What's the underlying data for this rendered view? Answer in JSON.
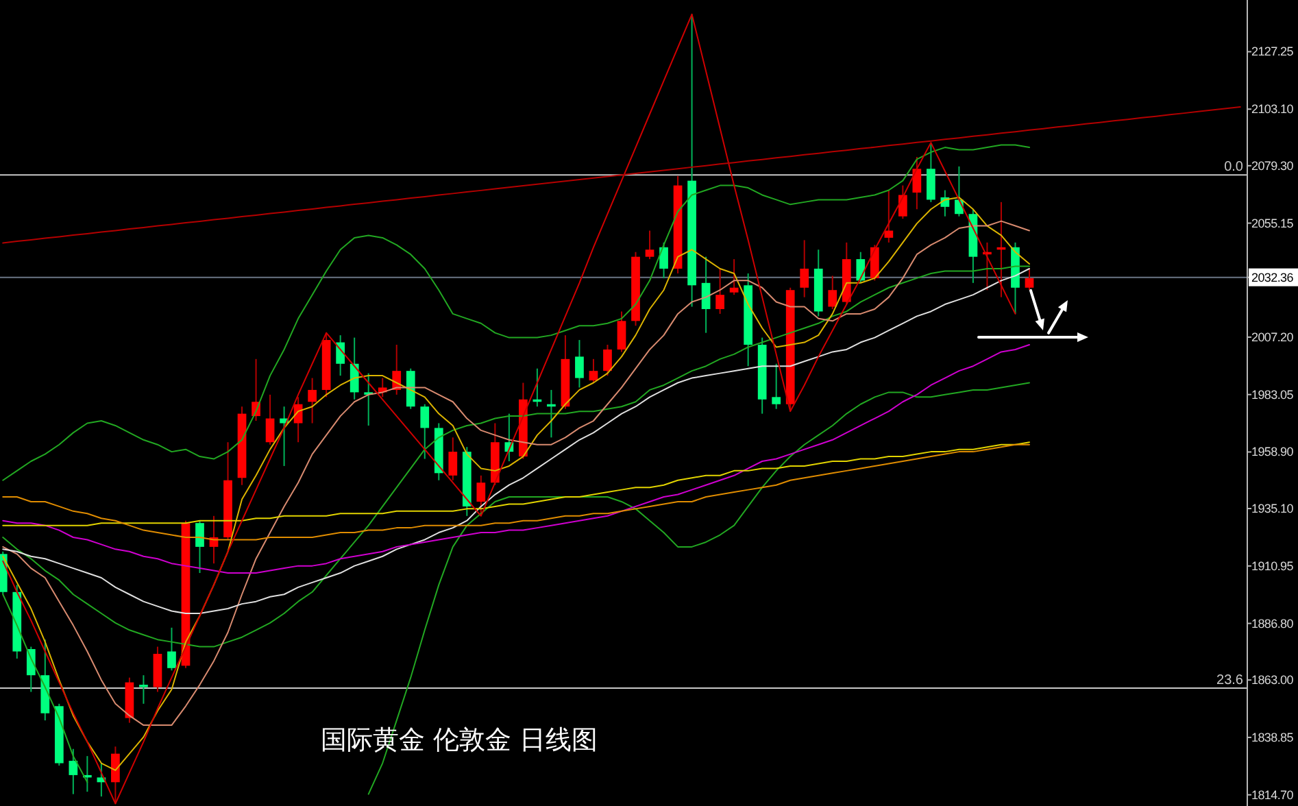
{
  "chart_data": {
    "type": "candlestick",
    "title": "国际黄金 伦敦金 日线图",
    "categories": [
      null,
      null,
      null,
      null,
      null,
      null,
      null,
      null,
      null,
      null,
      null,
      null,
      null,
      null,
      null,
      null,
      null,
      null,
      null,
      null,
      null,
      null,
      null,
      null,
      null,
      null,
      null,
      null,
      null,
      null,
      null,
      null,
      null,
      null,
      null,
      null,
      null,
      null,
      null,
      null,
      null,
      null,
      null,
      null,
      null,
      null,
      null,
      null,
      null,
      null,
      null,
      null,
      null,
      null,
      null,
      null,
      null,
      null,
      null,
      null,
      null,
      null,
      null,
      null,
      null,
      null,
      null,
      null,
      null,
      null,
      null,
      null,
      null,
      null,
      null,
      null,
      null,
      null,
      null,
      null,
      null,
      null,
      null,
      null,
      null,
      null,
      null,
      null,
      null
    ],
    "ylim": [
      1810,
      2149
    ],
    "yticks": [
      2127.25,
      {
        "value": 2103.1,
        "label": "2103.10"
      },
      {
        "value": 2079.3,
        "label": "2079.30"
      },
      2055.15,
      2032.36,
      {
        "value": 2007.2,
        "label": "2007.20"
      },
      1983.05,
      {
        "value": 1958.9,
        "label": "1958.90"
      },
      {
        "value": 1935.1,
        "label": "1935.10"
      },
      1910.95,
      {
        "value": 1886.8,
        "label": "1886.80"
      },
      {
        "value": 1863,
        "label": "1863.00"
      },
      1838.85,
      {
        "value": 1814.7,
        "label": "1814.70"
      }
    ],
    "tick_labels": "y",
    "ref_lines": [
      {
        "axis": "y",
        "value": 2075.4,
        "color": "#c8c8c8"
      },
      {
        "axis": "y",
        "value": 1859.6,
        "color": "#c8c8c8"
      },
      {
        "axis": "y",
        "value": 2032.36,
        "color": "#6b7585"
      }
    ],
    "annotations": [
      {
        "text": "0.0",
        "y": 2075.4
      },
      {
        "text": "23.6",
        "y": 1859.6
      }
    ],
    "series": [
      {
        "ohlc": [
          [
            1916,
            1917,
            1899,
            1900
          ],
          [
            1900,
            1903,
            1872,
            1875
          ],
          [
            1876,
            1877,
            1858,
            1865
          ],
          [
            1865,
            1880,
            1846,
            1849
          ],
          [
            1852,
            1853,
            1827,
            1828
          ],
          [
            1829,
            1834,
            1815,
            1823
          ],
          [
            1823,
            1831,
            1816,
            1822
          ],
          [
            1822,
            1828,
            1814,
            1820
          ],
          [
            1820,
            1835,
            1811,
            1832
          ],
          [
            1847,
            1864,
            1845,
            1862
          ],
          [
            1861,
            1865,
            1853,
            1860
          ],
          [
            1860,
            1877,
            1858,
            1874
          ],
          [
            1875,
            1885,
            1867,
            1868
          ],
          [
            1869,
            1930,
            1868,
            1929
          ],
          [
            1929,
            1930,
            1908,
            1919
          ],
          [
            1919,
            1932,
            1912,
            1923
          ],
          [
            1923,
            1963,
            1922,
            1947
          ],
          [
            1948,
            1978,
            1945,
            1975
          ],
          [
            1974,
            1998,
            1972,
            1980
          ],
          [
            1963,
            1983,
            1962,
            1973
          ],
          [
            1973,
            1978,
            1953,
            1971
          ],
          [
            1971,
            1982,
            1963,
            1979
          ],
          [
            1980,
            1990,
            1971,
            1985
          ],
          [
            1985,
            2009,
            1982,
            2006
          ],
          [
            2005,
            2008,
            1991,
            1996
          ],
          [
            1996,
            2007,
            1981,
            1984
          ],
          [
            1984,
            1992,
            1970,
            1983
          ],
          [
            1984,
            1990,
            1982,
            1986
          ],
          [
            1985,
            2004,
            1983,
            1993
          ],
          [
            1993,
            1994,
            1977,
            1978
          ],
          [
            1978,
            1979,
            1956,
            1969
          ],
          [
            1969,
            1971,
            1947,
            1950
          ],
          [
            1949,
            1965,
            1947,
            1959
          ],
          [
            1959,
            1961,
            1932,
            1936
          ],
          [
            1938,
            1949,
            1932,
            1946
          ],
          [
            1946,
            1971,
            1945,
            1963
          ],
          [
            1963,
            1975,
            1955,
            1959
          ],
          [
            1957,
            1988,
            1956,
            1981
          ],
          [
            1981,
            1994,
            1978,
            1980
          ],
          [
            1979,
            1985,
            1965,
            1978
          ],
          [
            1978,
            2008,
            1977,
            1998
          ],
          [
            1999,
            2006,
            1986,
            1990
          ],
          [
            1989,
            1998,
            1988,
            1993
          ],
          [
            1993,
            2004,
            1991,
            2002
          ],
          [
            2002,
            2018,
            2001,
            2014
          ],
          [
            2014,
            2043,
            2012,
            2041
          ],
          [
            2041,
            2052,
            2040,
            2044
          ],
          [
            2045,
            2047,
            2032,
            2036
          ],
          [
            2036,
            2075,
            2034,
            2071
          ],
          [
            2073,
            2143,
            2020,
            2029
          ],
          [
            2030,
            2041,
            2009,
            2019
          ],
          [
            2019,
            2036,
            2017,
            2025
          ],
          [
            2026,
            2040,
            2025,
            2028
          ],
          [
            2029,
            2034,
            1995,
            2004
          ],
          [
            2004,
            2007,
            1975,
            1981
          ],
          [
            1982,
            1996,
            1977,
            1979
          ],
          [
            1979,
            2028,
            1976,
            2027
          ],
          [
            2028,
            2048,
            2024,
            2036
          ],
          [
            2036,
            2044,
            2016,
            2018
          ],
          [
            2020,
            2033,
            2019,
            2027
          ],
          [
            2022,
            2047,
            2021,
            2040
          ],
          [
            2040,
            2043,
            2030,
            2031
          ],
          [
            2032,
            2046,
            2031,
            2045
          ],
          [
            2049,
            2069,
            2047,
            2052
          ],
          [
            2058,
            2071,
            2057,
            2067
          ],
          [
            2068,
            2083,
            2061,
            2078
          ],
          [
            2078,
            2089,
            2064,
            2065
          ],
          [
            2066,
            2069,
            2058,
            2062
          ],
          [
            2065,
            2079,
            2058,
            2059
          ],
          [
            2059,
            2061,
            2030,
            2041
          ],
          [
            2042,
            2047,
            2027,
            2043
          ],
          [
            2044,
            2064,
            2024,
            2045
          ],
          [
            2045,
            2047,
            2017,
            2028
          ],
          [
            2028,
            2036,
            2027,
            2032
          ],
          null,
          null,
          null,
          null,
          null,
          null,
          null,
          null,
          null,
          null,
          null,
          null,
          null,
          null,
          null
        ],
        "colors": [
          "#00ff7f",
          "#00ff7f",
          "#00ff7f",
          "#00ff7f",
          "#00ff7f",
          "#00ff7f",
          "#00ff7f",
          "#00ff7f",
          "#ff0000",
          "#ff0000",
          "#00ff7f",
          "#ff0000",
          "#00ff7f",
          "#ff0000",
          "#00ff7f",
          "#ff0000",
          "#ff0000",
          "#ff0000",
          "#ff0000",
          "#ff0000",
          "#00ff7f",
          "#ff0000",
          "#ff0000",
          "#ff0000",
          "#00ff7f",
          "#00ff7f",
          "#00ff7f",
          "#ff0000",
          "#ff0000",
          "#00ff7f",
          "#00ff7f",
          "#00ff7f",
          "#ff0000",
          "#00ff7f",
          "#ff0000",
          "#ff0000",
          "#00ff7f",
          "#ff0000",
          "#00ff7f",
          "#00ff7f",
          "#ff0000",
          "#00ff7f",
          "#ff0000",
          "#ff0000",
          "#ff0000",
          "#ff0000",
          "#ff0000",
          "#00ff7f",
          "#ff0000",
          "#00ff7f",
          "#00ff7f",
          "#ff0000",
          "#ff0000",
          "#00ff7f",
          "#00ff7f",
          "#00ff7f",
          "#ff0000",
          "#ff0000",
          "#00ff7f",
          "#ff0000",
          "#ff0000",
          "#00ff7f",
          "#ff0000",
          "#ff0000",
          "#ff0000",
          "#ff0000",
          "#00ff7f",
          "#00ff7f",
          "#00ff7f",
          "#00ff7f",
          "#ff0000",
          "#ff0000",
          "#00ff7f",
          "#ff0000",
          null,
          null,
          null,
          null,
          null,
          null,
          null,
          null,
          null,
          null,
          null,
          null,
          null,
          null,
          null
        ]
      },
      {
        "type": "line",
        "color": "#22a822",
        "values": [
          1947,
          1951,
          1955,
          1958,
          1962,
          1967,
          1971,
          1972,
          1970,
          1967,
          1964,
          1962,
          1959,
          1960,
          1957,
          1956,
          1959,
          1964,
          1976,
          1991,
          2002,
          2015,
          2025,
          2035,
          2044,
          2049,
          2050,
          2049,
          2046,
          2042,
          2036,
          2027,
          2017,
          2015,
          2013,
          2009,
          2007,
          2007,
          2007,
          2008,
          2010,
          2012,
          2012,
          2013,
          2015,
          2021,
          2031,
          2046,
          2060,
          2067,
          2069,
          2071,
          2071,
          2070,
          2067,
          2065,
          2063,
          2064,
          2065,
          2065,
          2065,
          2066,
          2067,
          2069,
          2073,
          2082,
          2085,
          2087,
          2086,
          2086,
          2087,
          2088,
          2088,
          2087,
          null,
          null,
          null,
          null,
          null,
          null,
          null,
          null,
          null,
          null,
          null,
          null,
          null,
          null,
          null
        ]
      },
      {
        "type": "line",
        "color": "#22a822",
        "values": [
          1923,
          1918,
          1914,
          1909,
          1905,
          1899,
          1895,
          1891,
          1887,
          1884,
          1882,
          1880,
          1879,
          1878,
          1877,
          1877,
          1879,
          1881,
          1884,
          1887,
          1891,
          1896,
          1900,
          1907,
          1914,
          1921,
          1928,
          1936,
          1944,
          1952,
          1960,
          1965,
          1968,
          1970,
          1971,
          1973,
          1974,
          1974,
          1975,
          1975,
          1975,
          1976,
          1976,
          1977,
          1978,
          1980,
          1985,
          1987,
          1990,
          1993,
          1995,
          1998,
          2000,
          2003,
          2005,
          2007,
          2009,
          2011,
          2013,
          2016,
          2018,
          2022,
          2025,
          2028,
          2030,
          2032,
          2034,
          2035,
          2035,
          2035,
          2036,
          2036,
          2037,
          2037,
          null,
          null,
          null,
          null,
          null,
          null,
          null,
          null,
          null,
          null,
          null,
          null,
          null,
          null,
          null
        ]
      },
      {
        "type": "line",
        "color": "#22a822",
        "values": [
          1899,
          1886,
          1872,
          1860,
          1847,
          1831,
          1820,
          null,
          null,
          null,
          null,
          null,
          null,
          null,
          null,
          null,
          null,
          null,
          null,
          null,
          null,
          null,
          null,
          null,
          null,
          null,
          1815,
          1828,
          1846,
          1864,
          1884,
          1903,
          1919,
          1928,
          1933,
          1938,
          1940,
          1940,
          1940,
          1940,
          1940,
          1940,
          1940,
          1940,
          1938,
          1935,
          1930,
          1925,
          1919,
          1919,
          1921,
          1924,
          1928,
          1936,
          1944,
          1951,
          1957,
          1962,
          1966,
          1970,
          1975,
          1979,
          1982,
          1984,
          1984,
          1982,
          1982,
          1983,
          1984,
          1985,
          1985,
          1986,
          1987,
          1988,
          null,
          null,
          null,
          null,
          null,
          null,
          null,
          null,
          null,
          null,
          null,
          null,
          null,
          null,
          null
        ]
      },
      {
        "type": "line",
        "color": "#dcb400",
        "values": [
          1915,
          1904,
          1893,
          1879,
          1863,
          1848,
          1837,
          1828,
          1825,
          1832,
          1839,
          1850,
          1859,
          1879,
          1890,
          1903,
          1917,
          1939,
          1949,
          1960,
          1969,
          1976,
          1978,
          1983,
          1987,
          1990,
          1991,
          1991,
          1988,
          1985,
          1982,
          1975,
          1970,
          1958,
          1952,
          1951,
          1953,
          1957,
          1966,
          1972,
          1979,
          1985,
          1988,
          1992,
          1999,
          2008,
          2019,
          2027,
          2041,
          2044,
          2040,
          2036,
          2034,
          2021,
          2011,
          2003,
          2004,
          2005,
          2008,
          2017,
          2030,
          2030,
          2032,
          2039,
          2047,
          2055,
          2061,
          2065,
          2066,
          2061,
          2054,
          2050,
          2043,
          2038,
          null,
          null,
          null,
          null,
          null,
          null,
          null,
          null,
          null,
          null,
          null,
          null,
          null,
          null,
          null
        ]
      },
      {
        "type": "line",
        "color": "#d98b70",
        "values": [
          1919,
          1916,
          1910,
          1906,
          1896,
          1886,
          1875,
          1863,
          1853,
          1848,
          1844,
          1844,
          1844,
          1852,
          1861,
          1871,
          1883,
          1899,
          1914,
          1925,
          1936,
          1946,
          1958,
          1966,
          1974,
          1980,
          1983,
          1984,
          1986,
          1986,
          1986,
          1983,
          1980,
          1973,
          1968,
          1966,
          1964,
          1963,
          1962,
          1962,
          1965,
          1969,
          1972,
          1979,
          1986,
          1994,
          2002,
          2008,
          2017,
          2022,
          2024,
          2027,
          2031,
          2031,
          2028,
          2022,
          2020,
          2020,
          2015,
          2014,
          2017,
          2017,
          2019,
          2024,
          2032,
          2042,
          2046,
          2049,
          2053,
          2054,
          2054,
          2056,
          2054,
          2052,
          null,
          null,
          null,
          null,
          null,
          null,
          null,
          null,
          null,
          null,
          null,
          null,
          null,
          null,
          null
        ]
      },
      {
        "type": "line",
        "color": "#e0e0e0",
        "values": [
          1918,
          1917,
          1915,
          1914,
          1912,
          1910,
          1908,
          1906,
          1902,
          1899,
          1896,
          1894,
          1892,
          1891,
          1891,
          1892,
          1893,
          1895,
          1896,
          1898,
          1899,
          1902,
          1904,
          1906,
          1908,
          1911,
          1913,
          1915,
          1918,
          1920,
          1922,
          1925,
          1927,
          1930,
          1936,
          1941,
          1945,
          1948,
          1952,
          1956,
          1960,
          1964,
          1967,
          1971,
          1975,
          1978,
          1982,
          1985,
          1988,
          1990,
          1991,
          1992,
          1993,
          1994,
          1995,
          1995,
          1995,
          1997,
          1999,
          2001,
          2002,
          2005,
          2007,
          2010,
          2013,
          2016,
          2018,
          2021,
          2023,
          2025,
          2028,
          2031,
          2033,
          2036,
          null,
          null,
          null,
          null,
          null,
          null,
          null,
          null,
          null,
          null,
          null,
          null,
          null,
          null,
          null
        ]
      },
      {
        "type": "line",
        "color": "#d000d0",
        "values": [
          1930,
          1929,
          1929,
          1928,
          1926,
          1923,
          1922,
          1920,
          1918,
          1917,
          1915,
          1914,
          1912,
          1911,
          1910,
          1909,
          1908,
          1908,
          1908,
          1909,
          1910,
          1911,
          1911,
          1912,
          1914,
          1915,
          1916,
          1917,
          1919,
          1920,
          1921,
          1922,
          1923,
          1924,
          1925,
          1925,
          1926,
          1926,
          1927,
          1928,
          1929,
          1930,
          1931,
          1932,
          1934,
          1936,
          1938,
          1940,
          1941,
          1943,
          1945,
          1947,
          1949,
          1952,
          1955,
          1956,
          1958,
          1960,
          1962,
          1964,
          1967,
          1970,
          1973,
          1976,
          1980,
          1983,
          1987,
          1990,
          1993,
          1995,
          1998,
          2001,
          2002,
          2004,
          null,
          null,
          null,
          null,
          null,
          null,
          null,
          null,
          null,
          null,
          null,
          null,
          null,
          null,
          null
        ]
      },
      {
        "type": "line",
        "color": "#e2d400",
        "values": [
          1928,
          1928,
          1928,
          1928,
          1928,
          1928,
          1928,
          1929,
          1929,
          1929,
          1929,
          1929,
          1929,
          1929,
          1930,
          1930,
          1930,
          1930,
          1931,
          1931,
          1932,
          1932,
          1932,
          1932,
          1933,
          1933,
          1933,
          1933,
          1934,
          1934,
          1934,
          1934,
          1934,
          1935,
          1935,
          1936,
          1937,
          1937,
          1938,
          1939,
          1940,
          1940,
          1941,
          1942,
          1943,
          1944,
          1944,
          1945,
          1947,
          1948,
          1949,
          1949,
          1951,
          1951,
          1952,
          1952,
          1953,
          1953,
          1954,
          1955,
          1955,
          1956,
          1956,
          1957,
          1957,
          1958,
          1959,
          1959,
          1960,
          1960,
          1961,
          1962,
          1962,
          1963,
          null,
          null,
          null,
          null,
          null,
          null,
          null,
          null,
          null,
          null,
          null,
          null,
          null,
          null,
          null
        ]
      },
      {
        "type": "line",
        "color": "#e08c00",
        "values": [
          1940,
          1940,
          1938,
          1938,
          1936,
          1934,
          1933,
          1931,
          1930,
          1928,
          1926,
          1925,
          1924,
          1923,
          1923,
          1922,
          1922,
          1922,
          1922,
          1923,
          1923,
          1923,
          1923,
          1924,
          1925,
          1925,
          1926,
          1926,
          1927,
          1927,
          1928,
          1928,
          1928,
          1928,
          1928,
          1929,
          1929,
          1930,
          1930,
          1931,
          1932,
          1932,
          1933,
          1933,
          1934,
          1935,
          1936,
          1937,
          1938,
          1938,
          1940,
          1941,
          1942,
          1943,
          1944,
          1945,
          1947,
          1948,
          1949,
          1950,
          1951,
          1952,
          1953,
          1954,
          1955,
          1956,
          1957,
          1958,
          1959,
          1959,
          1960,
          1961,
          1962,
          1962,
          null,
          null,
          null,
          null,
          null,
          null,
          null,
          null,
          null,
          null,
          null,
          null,
          null,
          null,
          null
        ]
      },
      {
        "type": "line",
        "color": "#d00000",
        "values": [
          1913,
          1900,
          1888,
          1875,
          1862,
          1849,
          1837,
          1824,
          1811,
          1824,
          1837,
          1851,
          1864,
          1877,
          1890,
          1903,
          1917,
          1930,
          1943,
          1956,
          1969,
          1983,
          1996,
          2009,
          2002,
          1995,
          1988,
          1981,
          1974,
          1967,
          1960,
          1953,
          1946,
          1939,
          1932,
          1946,
          1960,
          1974,
          1988,
          2002,
          2016,
          2030,
          2045,
          2059,
          2073,
          2087,
          2101,
          2115,
          2129,
          2143,
          2119,
          2095,
          2071,
          2048,
          2024,
          2000,
          1976,
          1987,
          1999,
          2010,
          2021,
          2032,
          2044,
          2055,
          2066,
          2078,
          2089,
          2077,
          2065,
          2053,
          2041,
          2029,
          2017,
          null,
          null,
          null,
          null,
          null,
          null,
          null,
          null,
          null,
          null,
          null,
          null,
          null,
          null,
          null,
          null
        ]
      },
      {
        "type": "line",
        "color": "#b40000",
        "values": [
          2046.8,
          2047.5,
          2048.1,
          2048.8,
          2049.4,
          2050.1,
          2050.7,
          2051.4,
          2052.0,
          2052.7,
          2053.3,
          2054.0,
          2054.6,
          2055.3,
          2055.9,
          2056.6,
          2057.2,
          2057.9,
          2058.5,
          2059.2,
          2059.8,
          2060.5,
          2061.1,
          2061.8,
          2062.4,
          2063.1,
          2063.7,
          2064.4,
          2065.0,
          2065.7,
          2066.3,
          2067.0,
          2067.6,
          2068.3,
          2068.9,
          2069.6,
          2070.2,
          2070.9,
          2071.5,
          2072.2,
          2072.8,
          2073.5,
          2074.1,
          2074.8,
          2075.4,
          2076.1,
          2076.7,
          2077.4,
          2078.0,
          2078.7,
          2079.3,
          2080.0,
          2080.6,
          2081.3,
          2081.9,
          2082.6,
          2083.2,
          2083.9,
          2084.5,
          2085.2,
          2085.8,
          2086.5,
          2087.1,
          2087.8,
          2088.4,
          2089.1,
          2089.7,
          2090.4,
          2091.0,
          2091.7,
          2092.3,
          2093.0,
          2093.6,
          2094.3,
          2094.9,
          2095.6,
          2096.2,
          2096.9,
          2097.5,
          2098.2,
          2098.8,
          2099.5,
          2100.1,
          2100.8,
          2101.4,
          2102.1,
          2102.7,
          2103.4,
          2104.0
        ]
      }
    ]
  }
}
